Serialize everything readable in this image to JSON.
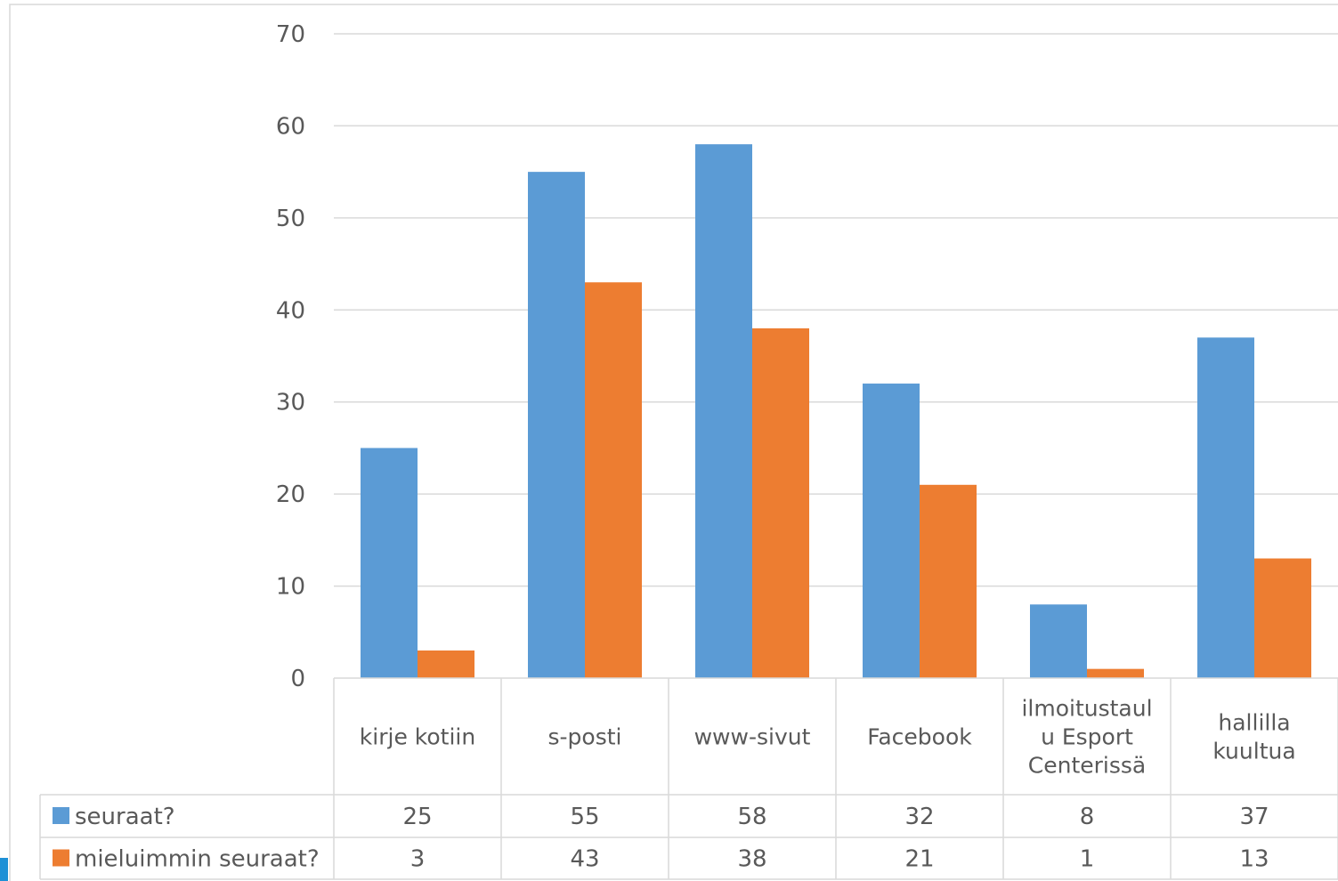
{
  "chart_data": {
    "type": "bar",
    "title": "",
    "xlabel": "",
    "ylabel": "",
    "ylim": [
      0,
      70
    ],
    "yticks": [
      0,
      10,
      20,
      30,
      40,
      50,
      60,
      70
    ],
    "grid": true,
    "legend": "data-table-left",
    "categories": [
      [
        "kirje kotiin"
      ],
      [
        "s-posti"
      ],
      [
        "www-sivut"
      ],
      [
        "Facebook"
      ],
      [
        "ilmoitustaul",
        "u Esport",
        "Centerissä"
      ],
      [
        "hallilla",
        "kuultua"
      ]
    ],
    "series": [
      {
        "name": "seuraat?",
        "color": "#5B9BD5",
        "values": [
          25,
          55,
          58,
          32,
          8,
          37
        ]
      },
      {
        "name": "mieluimmin seuraat?",
        "color": "#ED7D31",
        "values": [
          3,
          43,
          38,
          21,
          1,
          13
        ]
      }
    ]
  }
}
